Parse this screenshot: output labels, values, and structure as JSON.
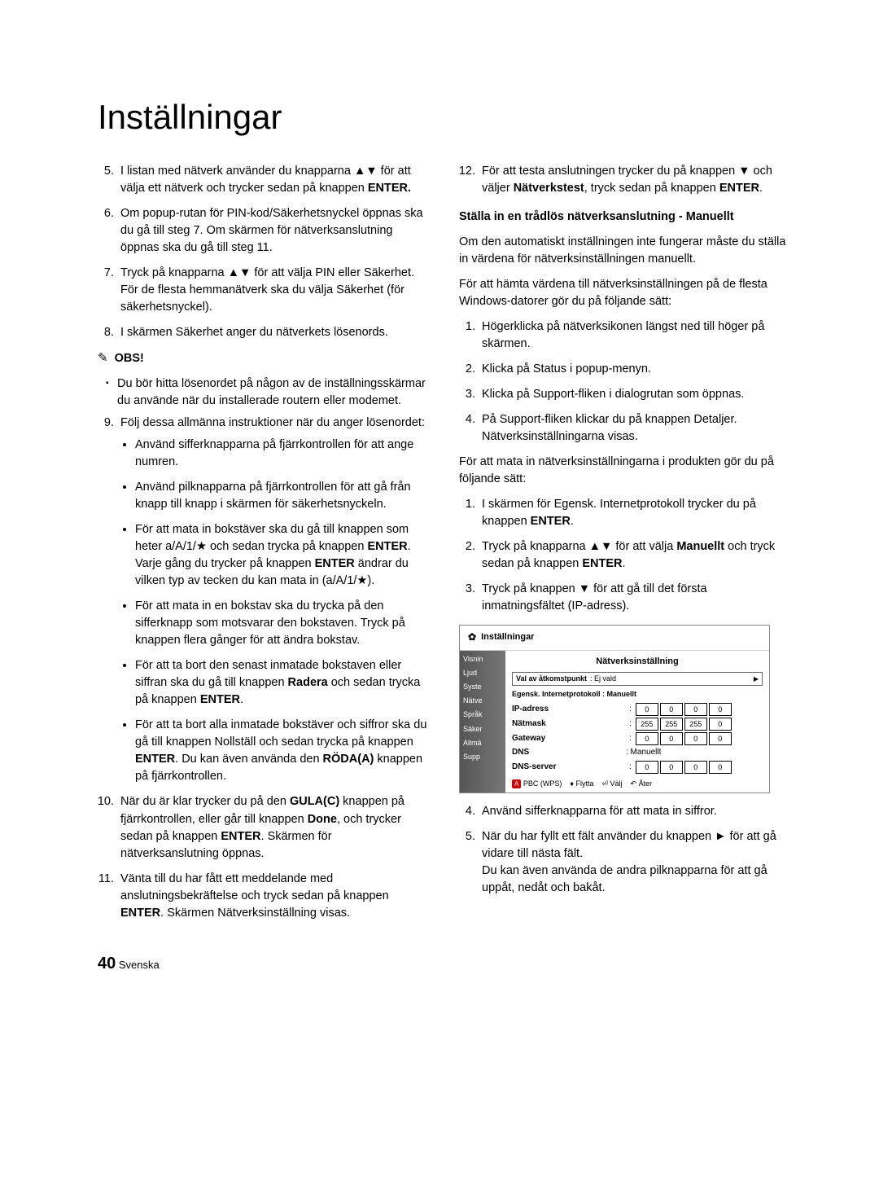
{
  "title": "Inställningar",
  "left": {
    "item5": "I listan med nätverk använder du knapparna ▲▼ för att välja ett nätverk och trycker sedan på knappen ",
    "item5_enter": "ENTER.",
    "item6": "Om popup-rutan för PIN-kod/Säkerhetsnyckel öppnas ska du gå till steg 7. Om skärmen för nätverksanslutning öppnas ska du gå till steg 11.",
    "item7a": "Tryck på knapparna ▲▼ för att välja PIN eller Säkerhet.",
    "item7b": "För de flesta hemmanätverk ska du välja Säkerhet (för säkerhetsnyckel).",
    "item8": "I skärmen Säkerhet anger du nätverkets lösenords.",
    "obs_label": "OBS!",
    "obs_text": "Du bör hitta lösenordet på någon av de inställningsskärmar du använde när du installerade routern eller modemet.",
    "item9": "Följ dessa allmänna instruktioner när du anger lösenordet:",
    "b1": "Använd sifferknapparna på fjärrkontrollen för att ange numren.",
    "b2": "Använd pilknapparna på fjärrkontrollen för att gå från knapp till knapp i skärmen för säkerhetsnyckeln.",
    "b3a": "För att mata in bokstäver ska du gå till knappen som heter a/A/1/★ och sedan trycka på knappen ",
    "b3_enter1": "ENTER",
    "b3b": ". Varje gång du trycker på knappen ",
    "b3_enter2": "ENTER",
    "b3c": " ändrar du vilken typ av tecken du kan mata in (a/A/1/★).",
    "b4": "För att mata in en bokstav ska du trycka på den sifferknapp som motsvarar den bokstaven. Tryck på knappen flera gånger för att ändra bokstav.",
    "b5a": "För att ta bort den senast inmatade bokstaven eller siffran ska du gå till knappen ",
    "b5_radera": "Radera",
    "b5b": " och sedan trycka på knappen ",
    "b5_enter": "ENTER",
    "b5c": ".",
    "b6a": "För att ta bort alla inmatade bokstäver och siffror ska du gå till knappen Nollställ och sedan trycka på knappen ",
    "b6_enter": "ENTER",
    "b6b": ". Du kan även använda den ",
    "b6_roda": "RÖDA(A)",
    "b6c": " knappen på fjärrkontrollen.",
    "item10a": "När du är klar trycker du på den ",
    "item10_gula": "GULA(C)",
    "item10b": " knappen på fjärrkontrollen, eller går till knappen ",
    "item10_done": "Done",
    "item10c": ", och trycker sedan på knappen ",
    "item10_enter": "ENTER",
    "item10d": ". Skärmen för nätverksanslutning öppnas.",
    "item11a": "Vänta till du har fått ett meddelande med anslutningsbekräftelse och tryck sedan på knappen ",
    "item11_enter": "ENTER",
    "item11b": ". Skärmen Nätverksinställning visas."
  },
  "right": {
    "item12a": "För att testa anslutningen trycker du på knappen ▼ och väljer ",
    "item12_nw": "Nätverkstest",
    "item12b": ", tryck sedan på knappen ",
    "item12_enter": "ENTER",
    "item12c": ".",
    "subhead": "Ställa in en trådlös nätverksanslutning - Manuellt",
    "p1": "Om den automatiskt inställningen inte fungerar måste du ställa in värdena för nätverksinställningen manuellt.",
    "p2": "För att hämta värdena till nätverksinställningen på de flesta Windows-datorer gör du på följande sätt:",
    "r1": "Högerklicka på nätverksikonen längst ned till höger på skärmen.",
    "r2": "Klicka på Status i popup-menyn.",
    "r3": "Klicka på Support-fliken i dialogrutan som öppnas.",
    "r4a": "På Support-fliken klickar du på knappen Detaljer.",
    "r4b": "Nätverksinställningarna visas.",
    "p3": "För att mata in nätverksinställningarna i produkten gör du på följande sätt:",
    "s1a": "I skärmen för Egensk. Internetprotokoll trycker du på knappen ",
    "s1_enter": "ENTER",
    "s1b": ".",
    "s2a": "Tryck på knapparna ▲▼ för att välja ",
    "s2_man": "Manuellt",
    "s2b": " och tryck sedan på knappen ",
    "s2_enter": "ENTER",
    "s2c": ".",
    "s3": "Tryck på knappen ▼ för att gå till det första inmatningsfältet (IP-adress).",
    "s4": "Använd sifferknapparna för att mata in siffror.",
    "s5a": "När du har fyllt ett fält använder du knappen ► för att gå vidare till nästa fält.",
    "s5b": "Du kan även använda de andra pilknapparna för att gå uppåt, nedåt och bakåt."
  },
  "diagram": {
    "header": "Inställningar",
    "title": "Nätverksinställning",
    "dropdown_label": "Val av åtkomstpunkt",
    "dropdown_value": ": Ej vald",
    "subline": "Egensk. Internetprotokoll : Manuellt",
    "sidebar": [
      "Visnin",
      "Ljud",
      "Syste",
      "Nätve",
      "Språk",
      "Säker",
      "Allmä",
      "Supp"
    ],
    "rows": [
      {
        "label": "IP-adress",
        "vals": [
          "0",
          "0",
          "0",
          "0"
        ]
      },
      {
        "label": "Nätmask",
        "vals": [
          "255",
          "255",
          "255",
          "0"
        ]
      },
      {
        "label": "Gateway",
        "vals": [
          "0",
          "0",
          "0",
          "0"
        ]
      }
    ],
    "dns_label": "DNS",
    "dns_value": ": Manuellt",
    "dns_server": {
      "label": "DNS-server",
      "vals": [
        "0",
        "0",
        "0",
        "0"
      ]
    },
    "footer": {
      "pbc": "PBC (WPS)",
      "move": "Flytta",
      "select": "Välj",
      "back": "Åter"
    }
  },
  "footer": {
    "num": "40",
    "lang": "Svenska"
  }
}
